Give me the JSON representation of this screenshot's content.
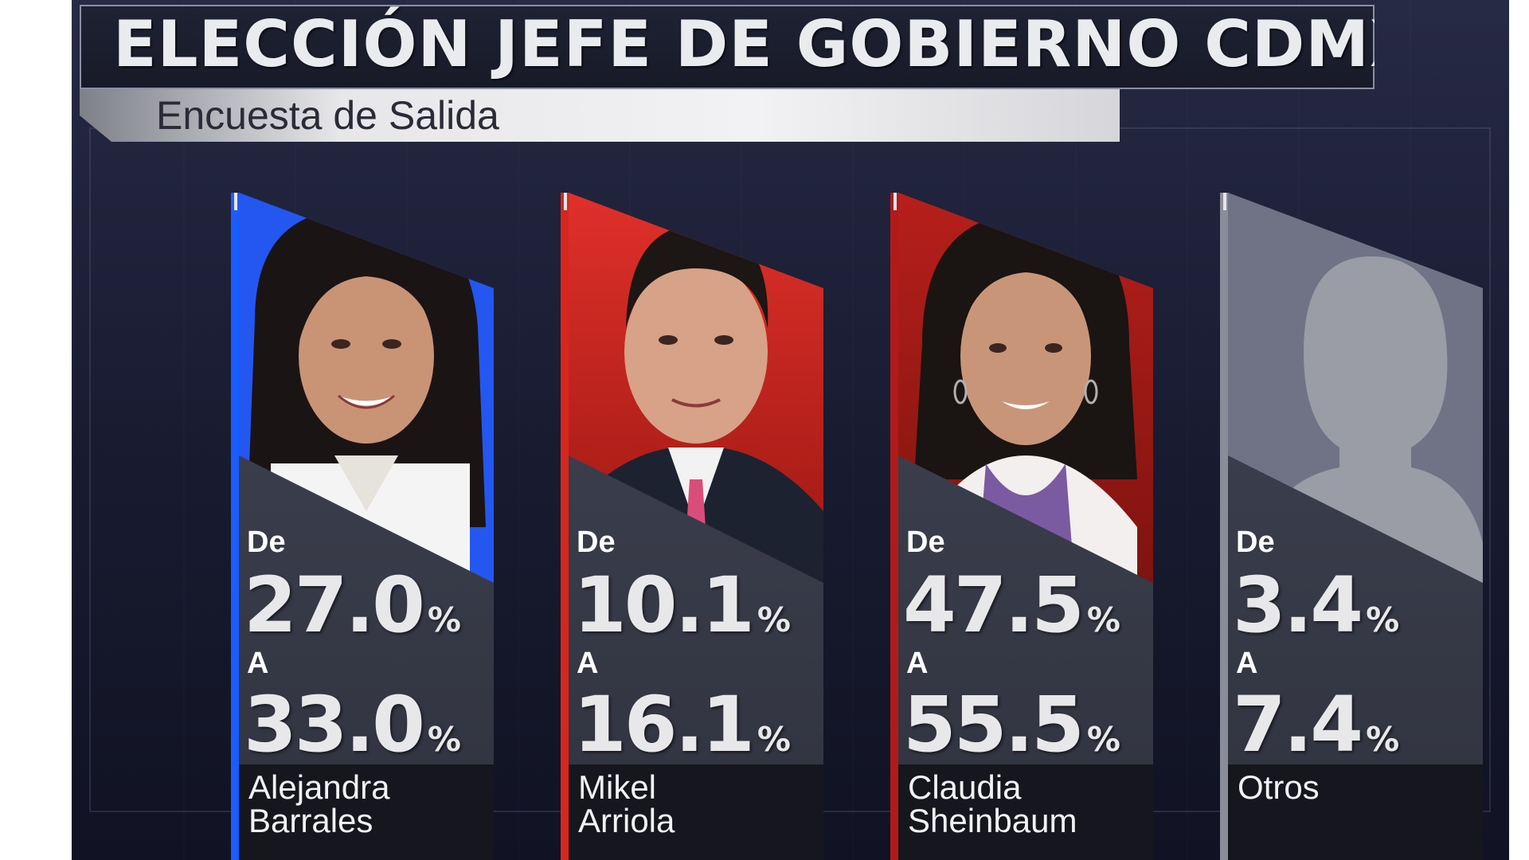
{
  "header": {
    "title": "ELECCIÓN JEFE DE GOBIERNO CDMX",
    "subtitle": "Encuesta de Salida"
  },
  "labels": {
    "from": "De",
    "to": "A",
    "percent": "%"
  },
  "candidates": [
    {
      "name_line1": "Alejandra",
      "name_line2": "Barrales",
      "from": "27.0",
      "to": "33.0",
      "color": "#1a5cff"
    },
    {
      "name_line1": "Mikel",
      "name_line2": "Arriola",
      "from": "10.1",
      "to": "16.1",
      "color": "#d7261e"
    },
    {
      "name_line1": "Claudia",
      "name_line2": "Sheinbaum",
      "from": "47.5",
      "to": "55.5",
      "color": "#b21a1a"
    },
    {
      "name_line1": "Otros",
      "name_line2": "",
      "from": "3.4",
      "to": "7.4",
      "color": "#8a8d99"
    }
  ],
  "colors": {
    "background": "#1d2038",
    "panel": "#33363f",
    "name_plate": "#16171e",
    "text": "#ffffff"
  }
}
